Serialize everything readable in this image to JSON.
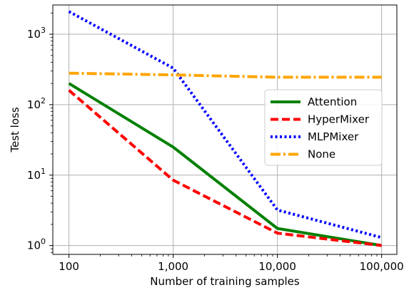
{
  "chart_data": {
    "type": "line",
    "xlabel": "Number of training samples",
    "ylabel": "Test loss",
    "x_scale": "log",
    "y_scale": "log",
    "x_ticks": [
      {
        "value": 100,
        "label": "100"
      },
      {
        "value": 1000,
        "label": "1,000"
      },
      {
        "value": 10000,
        "label": "10,000"
      },
      {
        "value": 100000,
        "label": "100,000"
      }
    ],
    "y_ticks": [
      {
        "value": 1,
        "base": "10",
        "exp": "0"
      },
      {
        "value": 10,
        "base": "10",
        "exp": "1"
      },
      {
        "value": 100,
        "base": "10",
        "exp": "2"
      },
      {
        "value": 1000,
        "base": "10",
        "exp": "3"
      }
    ],
    "xlim": [
      70,
      140000
    ],
    "ylim": [
      0.75,
      2600
    ],
    "grid": true,
    "legend_position": "center-right",
    "x": [
      100,
      1000,
      10000,
      100000
    ],
    "series": [
      {
        "name": "Attention",
        "values": [
          200,
          25,
          1.75,
          1.0
        ],
        "color": "#008000",
        "dash": "solid"
      },
      {
        "name": "HyperMixer",
        "values": [
          160,
          8.5,
          1.5,
          1.0
        ],
        "color": "#ff0000",
        "dash": "dashed"
      },
      {
        "name": "MLPMixer",
        "values": [
          2100,
          330,
          3.2,
          1.3
        ],
        "color": "#0000ff",
        "dash": "dotted"
      },
      {
        "name": "None",
        "values": [
          280,
          265,
          245,
          245
        ],
        "color": "#ffa500",
        "dash": "dashdot"
      }
    ]
  }
}
